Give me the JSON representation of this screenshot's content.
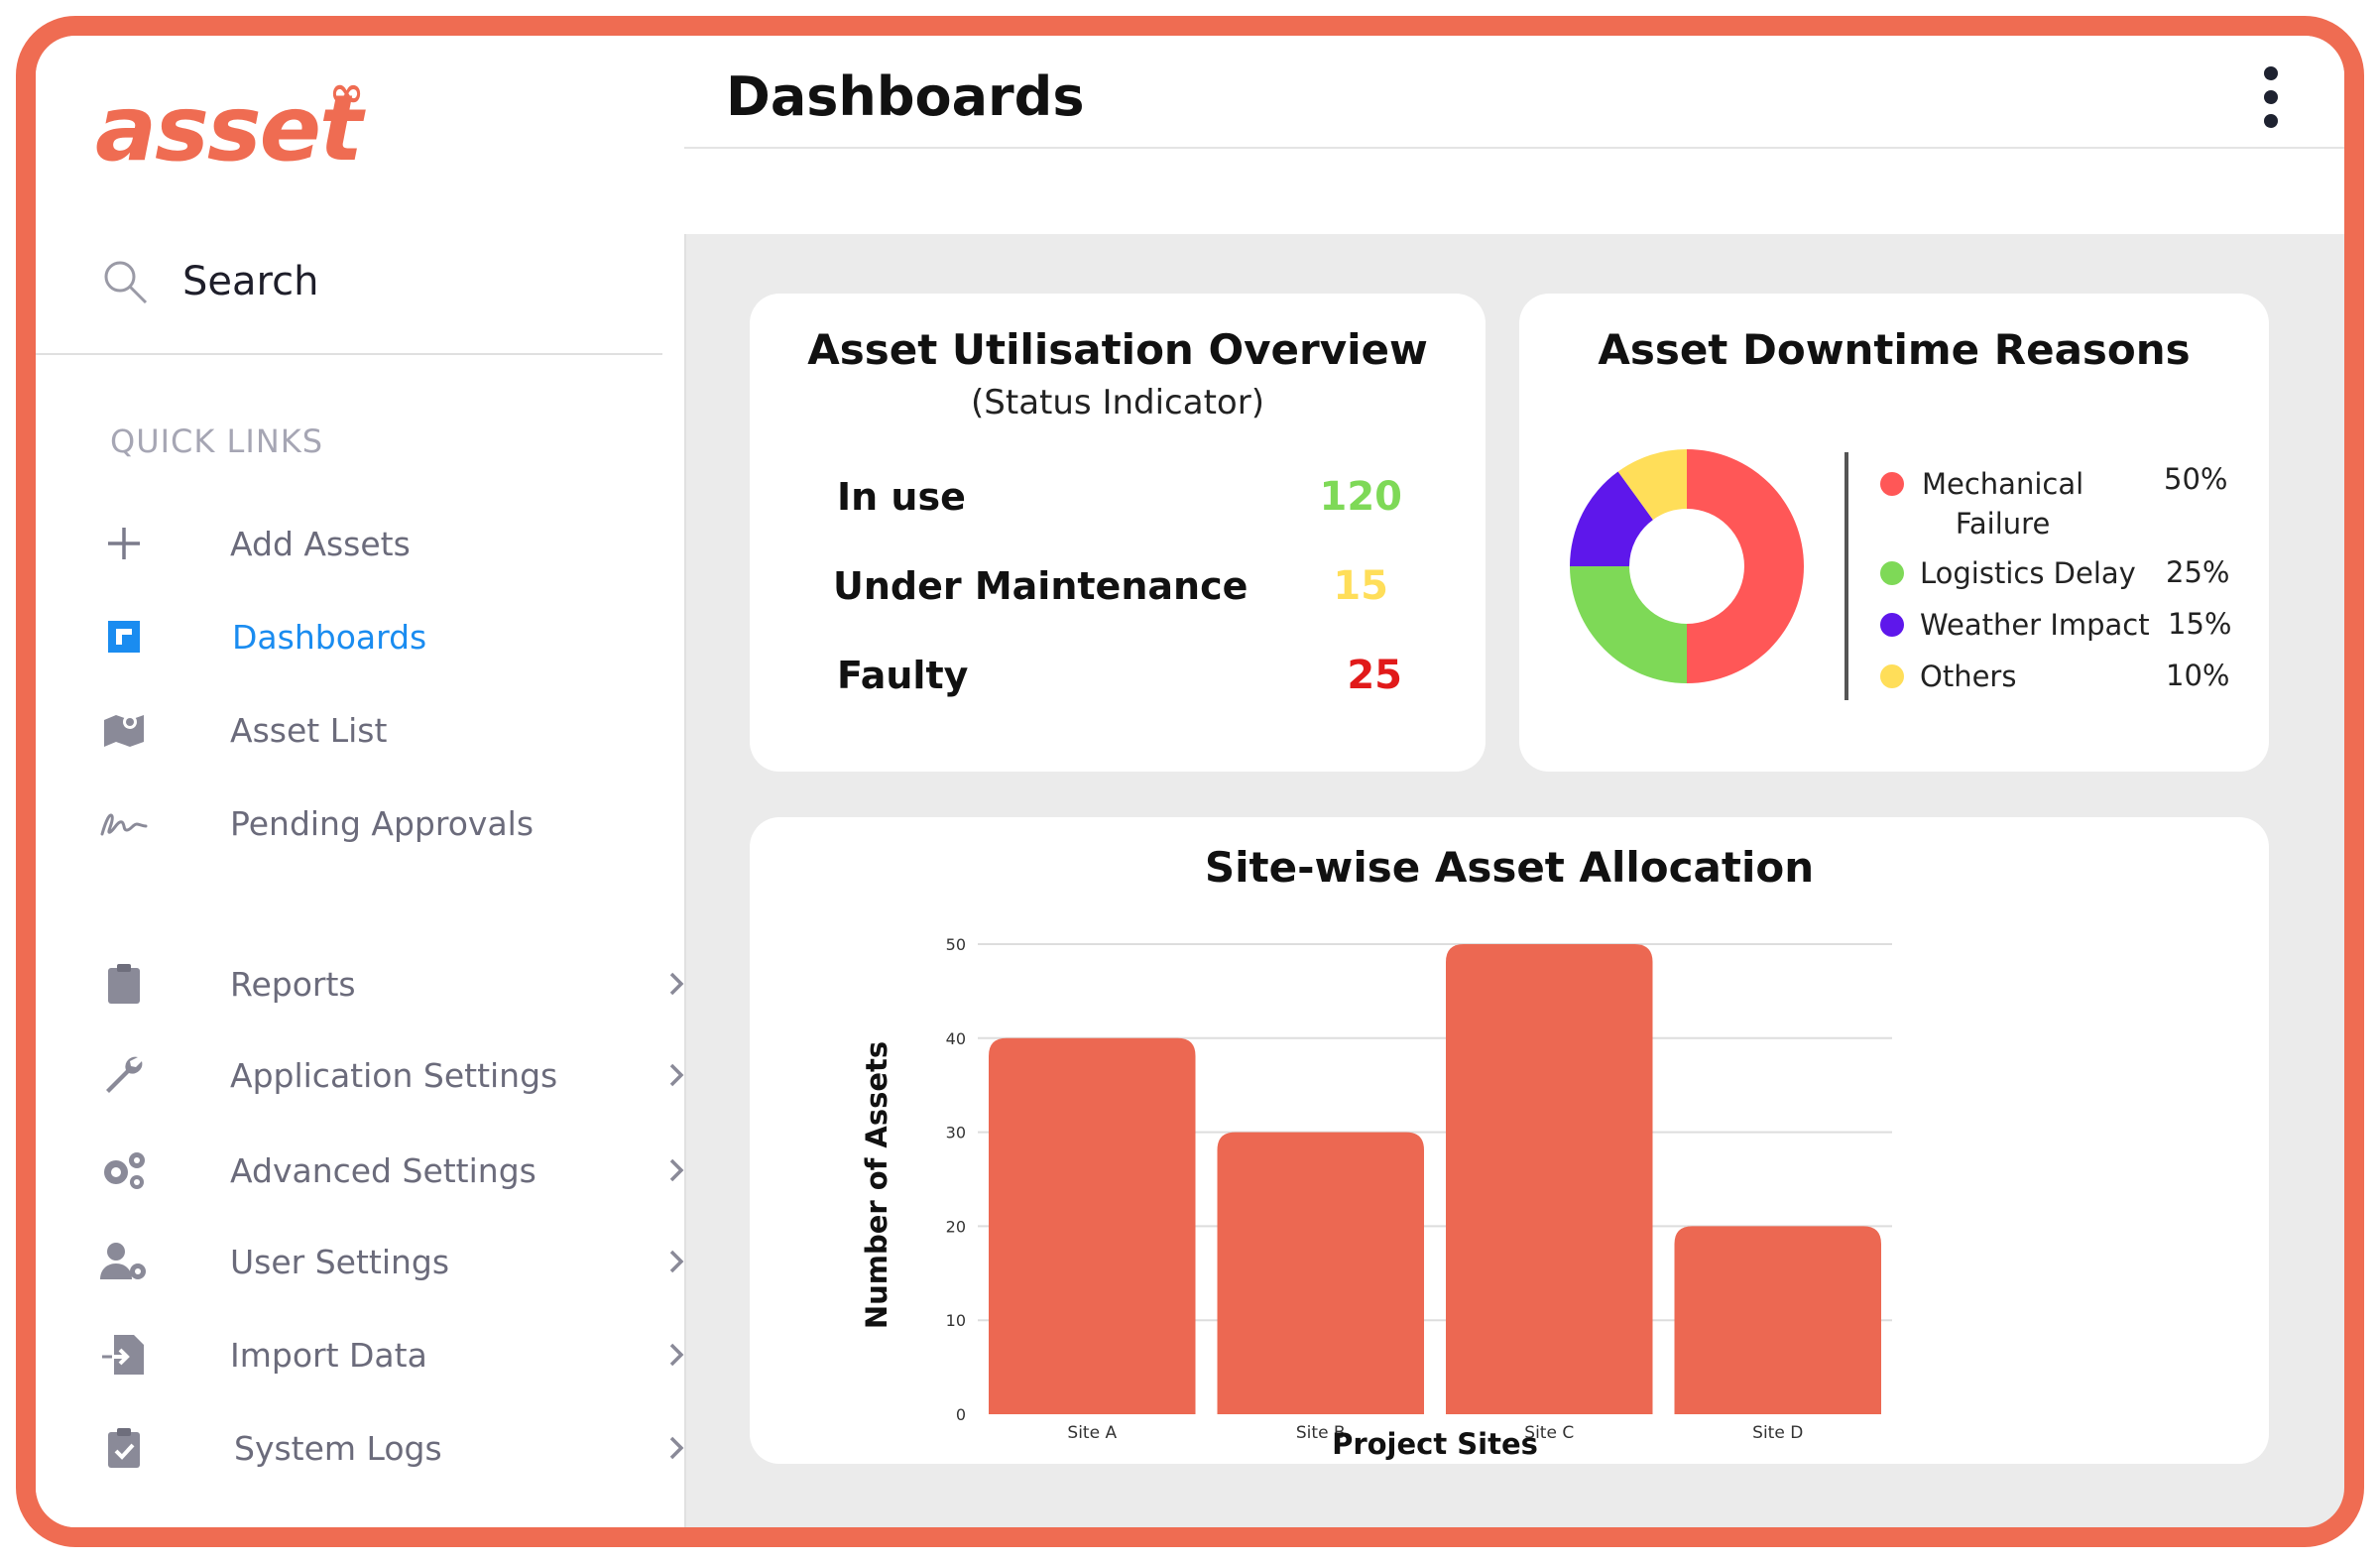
{
  "app": {
    "logo_text": "asset",
    "logo_symbol": "∞"
  },
  "sidebar": {
    "search_label": "Search",
    "quick_links_title": "QUICK LINKS",
    "items": [
      {
        "label": "Add Assets",
        "icon": "plus-icon"
      },
      {
        "label": "Dashboards",
        "icon": "dashboard-icon",
        "active": true
      },
      {
        "label": "Asset List",
        "icon": "map-icon"
      },
      {
        "label": "Pending Approvals",
        "icon": "signature-icon"
      },
      {
        "label": "Reports",
        "icon": "clipboard-icon"
      },
      {
        "label": "Application Settings",
        "icon": "wrench-icon"
      },
      {
        "label": "Advanced Settings",
        "icon": "gears-icon"
      },
      {
        "label": "User Settings",
        "icon": "user-gear-icon"
      },
      {
        "label": "Import Data",
        "icon": "file-import-icon"
      },
      {
        "label": "System Logs",
        "icon": "clipboard-check-icon"
      }
    ]
  },
  "header": {
    "title": "Dashboards"
  },
  "utilisation": {
    "title": "Asset Utilisation Overview",
    "subtitle": "(Status Indicator)",
    "rows": [
      {
        "label": "In use",
        "value": "120",
        "color": "#7ed957"
      },
      {
        "label": "Under Maintenance",
        "value": "15",
        "color": "#ffde59"
      },
      {
        "label": "Faulty",
        "value": "25",
        "color": "#e11a1a"
      }
    ]
  },
  "downtime": {
    "title": "Asset Downtime Reasons",
    "legend": [
      {
        "name_line1": "Mechanical",
        "name_line2": "Failure",
        "pct": "50%",
        "color": "#ff5757"
      },
      {
        "name_line1": "Logistics Delay",
        "name_line2": "",
        "pct": "25%",
        "color": "#7ed957"
      },
      {
        "name_line1": "Weather Impact",
        "name_line2": "",
        "pct": "15%",
        "color": "#5e17eb"
      },
      {
        "name_line1": "Others",
        "name_line2": "",
        "pct": "10%",
        "color": "#ffde59"
      }
    ]
  },
  "chart_data": [
    {
      "type": "pie",
      "title": "Asset Downtime Reasons",
      "categories": [
        "Mechanical Failure",
        "Logistics Delay",
        "Weather Impact",
        "Others"
      ],
      "values": [
        50,
        25,
        15,
        10
      ],
      "colors": [
        "#ff5757",
        "#7ed957",
        "#5e17eb",
        "#ffde59"
      ],
      "donut": true,
      "legend": "right"
    },
    {
      "type": "bar",
      "title": "Site-wise Asset Allocation",
      "categories": [
        "Site A",
        "Site B",
        "Site C",
        "Site D"
      ],
      "values": [
        40,
        30,
        50,
        20
      ],
      "xlabel": "Project Sites",
      "ylabel": "Number of Assets",
      "ylim": [
        0,
        50
      ],
      "yticks": [
        0,
        10,
        20,
        30,
        40,
        50
      ],
      "grid": true,
      "bar_color": "#ec6852"
    }
  ]
}
